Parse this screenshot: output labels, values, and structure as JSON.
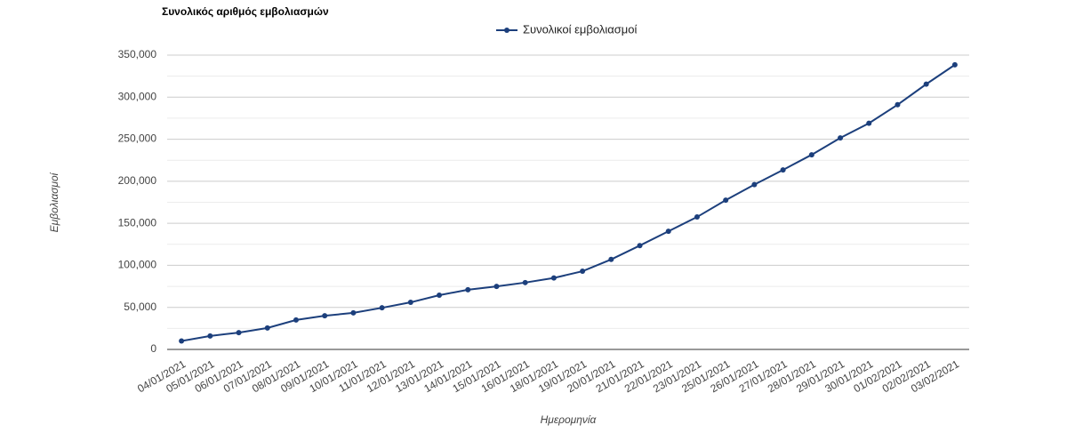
{
  "chart_data": {
    "type": "line",
    "title": "Συνολικός αριθμός εμβολιασμών",
    "x_label": "Ημερομηνία",
    "y_label": "Εμβολιασμοί",
    "categories": [
      "04/01/2021",
      "05/01/2021",
      "06/01/2021",
      "07/01/2021",
      "08/01/2021",
      "09/01/2021",
      "10/01/2021",
      "11/01/2021",
      "12/01/2021",
      "13/01/2021",
      "14/01/2021",
      "15/01/2021",
      "16/01/2021",
      "18/01/2021",
      "19/01/2021",
      "20/01/2021",
      "21/01/2021",
      "22/01/2021",
      "23/01/2021",
      "25/01/2021",
      "26/01/2021",
      "27/01/2021",
      "28/01/2021",
      "29/01/2021",
      "30/01/2021",
      "01/02/2021",
      "02/02/2021",
      "03/02/2021"
    ],
    "series": [
      {
        "name": "Συνολικοί εμβολιασμοί",
        "color": "#1c3f7c",
        "values": [
          10000,
          16000,
          20000,
          25500,
          35000,
          40000,
          43500,
          49500,
          56000,
          64500,
          71000,
          75000,
          79500,
          85000,
          93000,
          107000,
          123500,
          140500,
          157500,
          177500,
          196000,
          213500,
          231500,
          251500,
          269000,
          291000,
          315500,
          338500
        ]
      }
    ],
    "ylim": [
      0,
      350000
    ],
    "yticks": [
      0,
      {
        "value": 50000,
        "label": "50,000"
      },
      {
        "value": 100000,
        "label": "100,000"
      },
      {
        "value": 150000,
        "label": "150,000"
      },
      {
        "value": 200000,
        "label": "200,000"
      },
      {
        "value": 250000,
        "label": "250,000"
      },
      {
        "value": 300000,
        "label": "300,000"
      },
      {
        "value": 350000,
        "label": "350,000"
      }
    ],
    "grid": true,
    "legend": "top"
  }
}
